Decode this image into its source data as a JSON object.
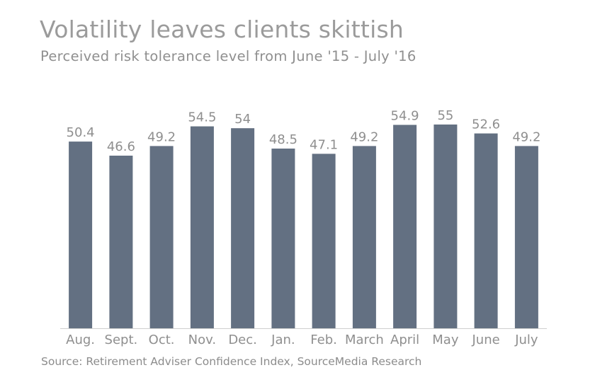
{
  "chart_data": {
    "type": "bar",
    "title": "Volatility leaves clients skittish",
    "subtitle": "Perceived risk tolerance level from June '15 - July '16",
    "source": "Source: Retirement Adviser Confidence Index, SourceMedia Research",
    "categories": [
      "Aug.",
      "Sept.",
      "Oct.",
      "Nov.",
      "Dec.",
      "Jan.",
      "Feb.",
      "March",
      "April",
      "May",
      "June",
      "July"
    ],
    "values": [
      50.4,
      46.6,
      49.2,
      54.5,
      54,
      48.5,
      47.1,
      49.2,
      54.9,
      55,
      52.6,
      49.2
    ],
    "value_labels": [
      "50.4",
      "46.6",
      "49.2",
      "54.5",
      "54",
      "48.5",
      "47.1",
      "49.2",
      "54.9",
      "55",
      "52.6",
      "49.2"
    ],
    "xlabel": "",
    "ylabel": "",
    "ylim": [
      0,
      55
    ],
    "grid": false,
    "bar_color": "#637082"
  }
}
